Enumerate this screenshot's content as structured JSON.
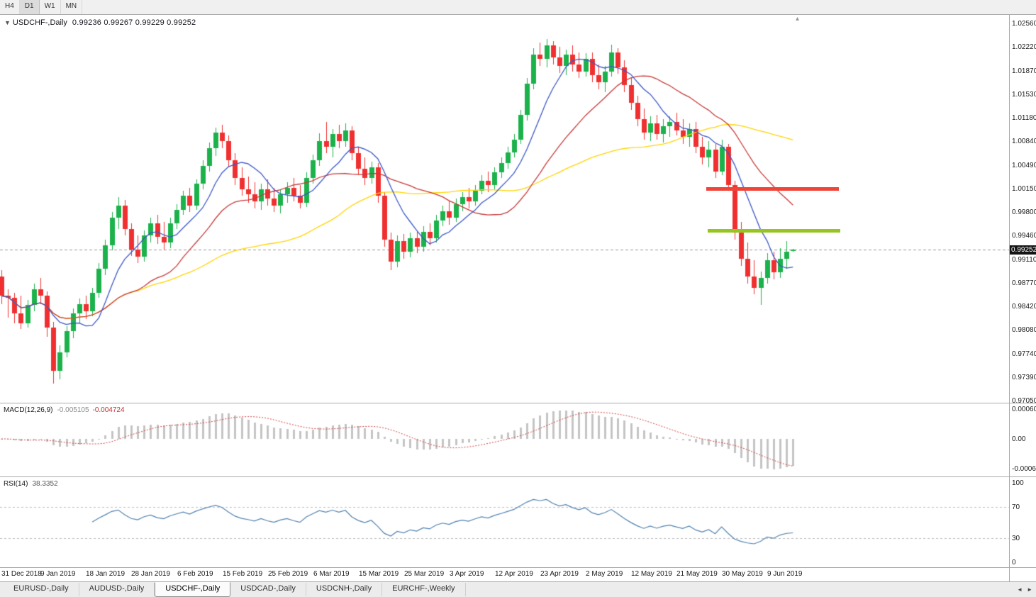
{
  "window": {
    "title_symbol": "USDCHF-,Daily",
    "ohlc_readout": "0.99236 0.99267 0.99229 0.99252"
  },
  "toolbar": {
    "timeframes": [
      {
        "label": "H4",
        "active": false
      },
      {
        "label": "D1",
        "active": true
      },
      {
        "label": "W1",
        "active": false
      },
      {
        "label": "MN",
        "active": false
      }
    ]
  },
  "tabs": {
    "items": [
      {
        "label": "EURUSD-,Daily",
        "active": false
      },
      {
        "label": "AUDUSD-,Daily",
        "active": false
      },
      {
        "label": "USDCHF-,Daily",
        "active": true
      },
      {
        "label": "USDCAD-,Daily",
        "active": false
      },
      {
        "label": "USDCNH-,Daily",
        "active": false
      },
      {
        "label": "EURCHF-,Weekly",
        "active": false
      }
    ],
    "nav_prev": "◄",
    "nav_next": "►"
  },
  "chart_data": {
    "type": "candlestick",
    "symbol": "USDCHF-",
    "timeframe": "Daily",
    "current": {
      "open": 0.99236,
      "high": 0.99267,
      "low": 0.99229,
      "close": 0.99252
    },
    "price_axis": {
      "labels": [
        "1.02560",
        "1.02220",
        "1.01870",
        "1.01530",
        "1.01180",
        "1.00840",
        "1.00490",
        "1.00150",
        "0.99800",
        "0.99460",
        "0.99110",
        "0.98770",
        "0.98420",
        "0.98080",
        "0.97740",
        "0.97390",
        "0.97050"
      ],
      "max": 1.0256,
      "min": 0.9705,
      "current_tag": "0.99252"
    },
    "time_axis": {
      "labels": [
        "31 Dec 2018",
        "9 Jan 2019",
        "18 Jan 2019",
        "28 Jan 2019",
        "6 Feb 2019",
        "15 Feb 2019",
        "25 Feb 2019",
        "6 Mar 2019",
        "15 Mar 2019",
        "25 Mar 2019",
        "3 Apr 2019",
        "12 Apr 2019",
        "23 Apr 2019",
        "2 May 2019",
        "12 May 2019",
        "21 May 2019",
        "30 May 2019",
        "9 Jun 2019"
      ],
      "label_bar_indices": [
        2,
        9,
        16,
        23,
        30,
        37,
        44,
        51,
        58,
        65,
        72,
        79,
        86,
        93,
        100,
        107,
        114,
        121
      ]
    },
    "ohlc": [
      [
        0.9886,
        0.9896,
        0.9846,
        0.9858
      ],
      [
        0.9858,
        0.9868,
        0.9826,
        0.9855
      ],
      [
        0.9855,
        0.9862,
        0.9818,
        0.9832
      ],
      [
        0.9832,
        0.9858,
        0.981,
        0.9818
      ],
      [
        0.9818,
        0.9852,
        0.9812,
        0.9845
      ],
      [
        0.9845,
        0.9876,
        0.9836,
        0.9868
      ],
      [
        0.9868,
        0.9884,
        0.9846,
        0.9858
      ],
      [
        0.9858,
        0.9864,
        0.9798,
        0.9812
      ],
      [
        0.9812,
        0.982,
        0.973,
        0.9748
      ],
      [
        0.9748,
        0.9786,
        0.9736,
        0.9775
      ],
      [
        0.9775,
        0.9814,
        0.9768,
        0.9806
      ],
      [
        0.9806,
        0.984,
        0.9796,
        0.9832
      ],
      [
        0.9832,
        0.9854,
        0.9818,
        0.9846
      ],
      [
        0.9846,
        0.9858,
        0.9824,
        0.9836
      ],
      [
        0.9836,
        0.987,
        0.9828,
        0.9862
      ],
      [
        0.9862,
        0.9906,
        0.9855,
        0.9898
      ],
      [
        0.9898,
        0.994,
        0.9888,
        0.9932
      ],
      [
        0.9932,
        0.998,
        0.9925,
        0.9972
      ],
      [
        0.9972,
        1.0002,
        0.9956,
        0.999
      ],
      [
        0.999,
        0.9998,
        0.9946,
        0.9956
      ],
      [
        0.9956,
        0.9964,
        0.9916,
        0.9926
      ],
      [
        0.9926,
        0.9946,
        0.9906,
        0.9915
      ],
      [
        0.9915,
        0.9954,
        0.9908,
        0.9946
      ],
      [
        0.9946,
        0.9972,
        0.9936,
        0.9964
      ],
      [
        0.9964,
        0.9976,
        0.9934,
        0.9944
      ],
      [
        0.9944,
        0.9966,
        0.9926,
        0.9936
      ],
      [
        0.9936,
        0.9972,
        0.9928,
        0.9964
      ],
      [
        0.9964,
        0.9992,
        0.9956,
        0.9984
      ],
      [
        0.9984,
        1.0012,
        0.9976,
        1.0004
      ],
      [
        1.0004,
        1.0016,
        0.998,
        0.999
      ],
      [
        0.999,
        1.0028,
        0.9984,
        1.0022
      ],
      [
        1.0022,
        1.0056,
        1.0014,
        1.0048
      ],
      [
        1.0048,
        1.0082,
        1.004,
        1.0074
      ],
      [
        1.0074,
        1.0104,
        1.0062,
        1.0096
      ],
      [
        1.0096,
        1.0108,
        1.0074,
        1.0084
      ],
      [
        1.0084,
        1.0092,
        1.0046,
        1.0056
      ],
      [
        1.0056,
        1.0066,
        1.002,
        1.003
      ],
      [
        1.003,
        1.0046,
        1.0004,
        1.0014
      ],
      [
        1.0014,
        1.0032,
        0.9994,
        1.0006
      ],
      [
        1.0006,
        1.0024,
        0.9986,
        0.9996
      ],
      [
        0.9996,
        1.0022,
        0.9984,
        1.0014
      ],
      [
        1.0014,
        1.0028,
        0.999,
        1.0
      ],
      [
        1.0,
        1.0016,
        0.998,
        0.999
      ],
      [
        0.999,
        1.0014,
        0.9978,
        1.0006
      ],
      [
        1.0006,
        1.0024,
        0.9994,
        1.0016
      ],
      [
        1.0016,
        1.003,
        0.9996,
        1.0004
      ],
      [
        1.0004,
        1.002,
        0.9986,
        0.9994
      ],
      [
        0.9994,
        1.0038,
        0.9988,
        1.003
      ],
      [
        1.003,
        1.0064,
        1.0022,
        1.0056
      ],
      [
        1.0056,
        1.0095,
        1.0048,
        1.0084
      ],
      [
        1.0084,
        1.0112,
        1.0066,
        1.0076
      ],
      [
        1.0076,
        1.0102,
        1.006,
        1.0094
      ],
      [
        1.0094,
        1.0108,
        1.0074,
        1.0084
      ],
      [
        1.0084,
        1.011,
        1.0076,
        1.01
      ],
      [
        1.01,
        1.0106,
        1.0056,
        1.0066
      ],
      [
        1.0066,
        1.0076,
        1.0034,
        1.0044
      ],
      [
        1.0044,
        1.006,
        1.002,
        1.003
      ],
      [
        1.003,
        1.0054,
        1.0022,
        1.0046
      ],
      [
        1.0046,
        1.0052,
        0.9994,
        1.0004
      ],
      [
        1.0004,
        1.001,
        0.993,
        0.994
      ],
      [
        0.994,
        0.995,
        0.9896,
        0.9908
      ],
      [
        0.9908,
        0.9946,
        0.99,
        0.9938
      ],
      [
        0.9938,
        0.9948,
        0.9912,
        0.9922
      ],
      [
        0.9922,
        0.995,
        0.9914,
        0.9942
      ],
      [
        0.9942,
        0.9952,
        0.992,
        0.993
      ],
      [
        0.993,
        0.996,
        0.9922,
        0.9952
      ],
      [
        0.9952,
        0.9964,
        0.9932,
        0.9942
      ],
      [
        0.9942,
        0.9976,
        0.9936,
        0.9968
      ],
      [
        0.9968,
        0.999,
        0.996,
        0.9982
      ],
      [
        0.9982,
        0.9996,
        0.9962,
        0.9972
      ],
      [
        0.9972,
        1.0,
        0.9966,
        0.9992
      ],
      [
        0.9992,
        1.001,
        0.9982,
        1.0002
      ],
      [
        1.0002,
        1.0016,
        0.9986,
        0.9996
      ],
      [
        0.9996,
        1.002,
        0.999,
        1.0012
      ],
      [
        1.0012,
        1.0034,
        1.0006,
        1.0026
      ],
      [
        1.0026,
        1.004,
        1.001,
        1.002
      ],
      [
        1.002,
        1.0046,
        1.0014,
        1.0038
      ],
      [
        1.0038,
        1.006,
        1.003,
        1.0052
      ],
      [
        1.0052,
        1.0076,
        1.0044,
        1.0068
      ],
      [
        1.0068,
        1.0094,
        1.006,
        1.0086
      ],
      [
        1.0086,
        1.013,
        1.008,
        1.0122
      ],
      [
        1.0122,
        1.0176,
        1.0114,
        1.0168
      ],
      [
        1.0168,
        1.022,
        1.016,
        1.021
      ],
      [
        1.021,
        1.0228,
        1.0194,
        1.0204
      ],
      [
        1.0204,
        1.0233,
        1.0192,
        1.0224
      ],
      [
        1.0224,
        1.023,
        1.0196,
        1.0206
      ],
      [
        1.0206,
        1.0222,
        1.0184,
        1.0194
      ],
      [
        1.0194,
        1.0218,
        1.018,
        1.021
      ],
      [
        1.021,
        1.0224,
        1.0186,
        1.0196
      ],
      [
        1.0196,
        1.0214,
        1.0176,
        1.0186
      ],
      [
        1.0186,
        1.0212,
        1.0178,
        1.0204
      ],
      [
        1.0204,
        1.0214,
        1.017,
        1.018
      ],
      [
        1.018,
        1.0196,
        1.016,
        1.017
      ],
      [
        1.017,
        1.0194,
        1.0156,
        1.0186
      ],
      [
        1.0186,
        1.0225,
        1.0178,
        1.0214
      ],
      [
        1.0214,
        1.022,
        1.0182,
        1.0192
      ],
      [
        1.0192,
        1.0202,
        1.0156,
        1.0166
      ],
      [
        1.0166,
        1.0176,
        1.013,
        1.014
      ],
      [
        1.014,
        1.015,
        1.0106,
        1.0116
      ],
      [
        1.0116,
        1.0132,
        1.0086,
        1.0096
      ],
      [
        1.0096,
        1.012,
        1.0084,
        1.011
      ],
      [
        1.011,
        1.0122,
        1.0086,
        1.0094
      ],
      [
        1.0094,
        1.0116,
        1.0082,
        1.0106
      ],
      [
        1.0106,
        1.012,
        1.009,
        1.0112
      ],
      [
        1.0112,
        1.0126,
        1.0092,
        1.01
      ],
      [
        1.01,
        1.0116,
        1.008,
        1.009
      ],
      [
        1.009,
        1.011,
        1.0076,
        1.0102
      ],
      [
        1.0102,
        1.0112,
        1.0066,
        1.0076
      ],
      [
        1.0076,
        1.009,
        1.005,
        1.006
      ],
      [
        1.006,
        1.0084,
        1.0046,
        1.0072
      ],
      [
        1.0072,
        1.008,
        1.003,
        1.004
      ],
      [
        1.004,
        1.0086,
        1.0034,
        1.0076
      ],
      [
        1.0076,
        1.008,
        1.0012,
        1.002
      ],
      [
        1.002,
        1.0026,
        0.994,
        0.995
      ],
      [
        0.995,
        0.9966,
        0.9902,
        0.9912
      ],
      [
        0.9912,
        0.9936,
        0.9876,
        0.9886
      ],
      [
        0.9886,
        0.991,
        0.986,
        0.987
      ],
      [
        0.987,
        0.9894,
        0.9845,
        0.9884
      ],
      [
        0.9884,
        0.992,
        0.9876,
        0.991
      ],
      [
        0.991,
        0.9922,
        0.9882,
        0.9892
      ],
      [
        0.9892,
        0.9928,
        0.9884,
        0.9912
      ],
      [
        0.9912,
        0.9938,
        0.9898,
        0.9922
      ],
      [
        0.99236,
        0.99267,
        0.99229,
        0.99252
      ]
    ],
    "moving_averages": [
      {
        "period": 8,
        "color": "#3a57c8"
      },
      {
        "period": 20,
        "color": "#c83838"
      },
      {
        "period": 45,
        "color": "#ffd400"
      }
    ],
    "hlines": [
      {
        "price": 1.0014,
        "color": "#ef4438",
        "from_bar": 108.6,
        "to_bar": 129.0,
        "thickness": 5
      },
      {
        "price": 0.9953,
        "color": "#96c520",
        "from_bar": 108.9,
        "to_bar": 129.3,
        "thickness": 5
      }
    ],
    "panels": [
      {
        "id": "macd",
        "name": "MACD(12,26,9)",
        "fast": 12,
        "slow": 26,
        "signal": 9,
        "value_main": "-0.005105",
        "value_signal": "-0.004724",
        "y_labels": [
          "0.0006058",
          "0.00",
          "-0.0006096"
        ]
      },
      {
        "id": "rsi",
        "name": "RSI(14)",
        "period": 14,
        "value": "38.3352",
        "y_labels": [
          "100",
          "70",
          "30",
          "0"
        ],
        "levels": [
          70,
          30
        ]
      }
    ],
    "colors": {
      "up": "#1cb24b",
      "down": "#f03030",
      "ma_fast": "#3a57c8",
      "ma_mid": "#c83838",
      "ma_slow": "#ffd400",
      "macd_hist": "#c4c4c4",
      "macd_signal": "#d04040",
      "rsi": "#4f81b0",
      "price_line": "#9a9a9a",
      "tag_bg": "#141414"
    }
  }
}
